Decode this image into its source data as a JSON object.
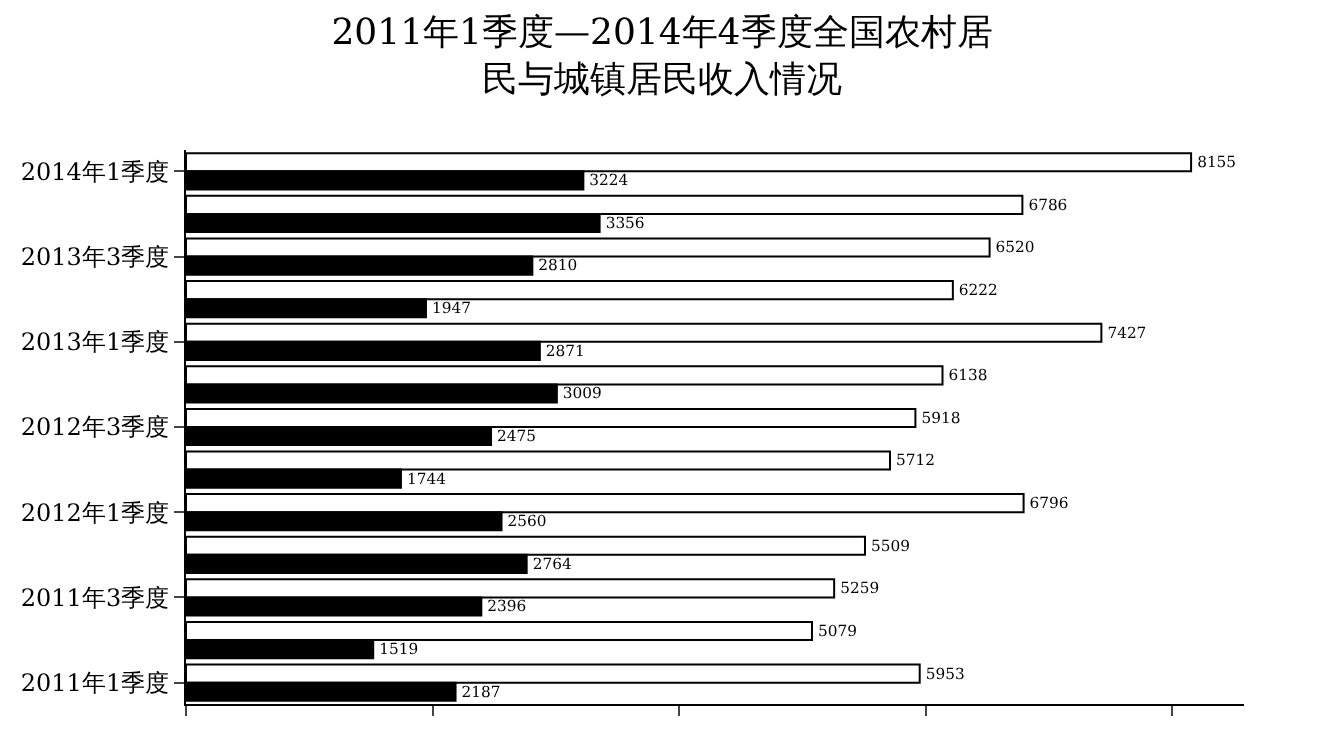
{
  "chart_data": {
    "type": "bar",
    "orientation": "horizontal",
    "title": "2011年1季度—2014年4季度全国农村居民与城镇居民收入情况",
    "categories": [
      "2014年1季度",
      null,
      "2013年3季度",
      null,
      "2013年1季度",
      null,
      "2012年3季度",
      null,
      "2012年1季度",
      null,
      "2011年3季度",
      null,
      "2011年1季度"
    ],
    "series": [
      {
        "color": "#ffffff",
        "values": [
          8155,
          6786,
          6520,
          6222,
          7427,
          6138,
          5918,
          5712,
          6796,
          5509,
          5259,
          5079,
          5953
        ]
      },
      {
        "color": "#000000",
        "values": [
          3224,
          3356,
          2810,
          1947,
          2871,
          3009,
          2475,
          1744,
          2560,
          2764,
          2396,
          1519,
          2187
        ]
      }
    ],
    "data_labels": true,
    "tick_labels": "y",
    "grid": false
  }
}
